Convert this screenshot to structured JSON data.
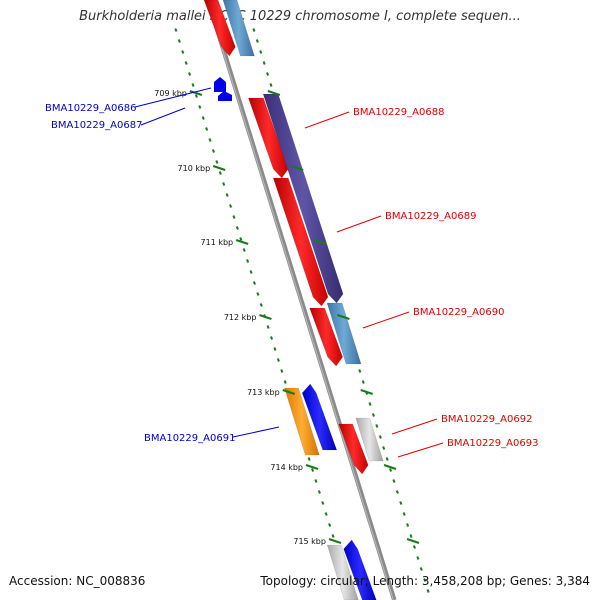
{
  "title": "Burkholderia mallei NCTC 10229 chromosome I, complete sequen...",
  "footer": {
    "accession": "Accession: NC_008836",
    "summary": "Topology: circular; Length: 3,458,208 bp; Genes: 3,384"
  },
  "colors": {
    "forward_label": "#e00000",
    "reverse_label": "#0000cc",
    "backbone": "#8a8a8a",
    "tick": "#1a7a1a",
    "red_gene": "#ff0000",
    "steelblue_gene": "#4f8fc0",
    "purple_gene": "#4a3f8f",
    "blue_gene": "#0000ff",
    "orange_gene": "#ff9900",
    "gray_gene": "#c8c8c8"
  },
  "ticks": [
    {
      "label": "709 kbp"
    },
    {
      "label": "710 kbp"
    },
    {
      "label": "711 kbp"
    },
    {
      "label": "712 kbp"
    },
    {
      "label": "713 kbp"
    },
    {
      "label": "714 kbp"
    },
    {
      "label": "715 kbp"
    }
  ],
  "genes": [
    {
      "label": "BMA10229_A0686",
      "strand": "reverse"
    },
    {
      "label": "BMA10229_A0687",
      "strand": "reverse"
    },
    {
      "label": "BMA10229_A0688",
      "strand": "forward"
    },
    {
      "label": "BMA10229_A0689",
      "strand": "forward"
    },
    {
      "label": "BMA10229_A0690",
      "strand": "forward"
    },
    {
      "label": "BMA10229_A0691",
      "strand": "reverse"
    },
    {
      "label": "BMA10229_A0692",
      "strand": "forward"
    },
    {
      "label": "BMA10229_A0693",
      "strand": "forward"
    }
  ]
}
